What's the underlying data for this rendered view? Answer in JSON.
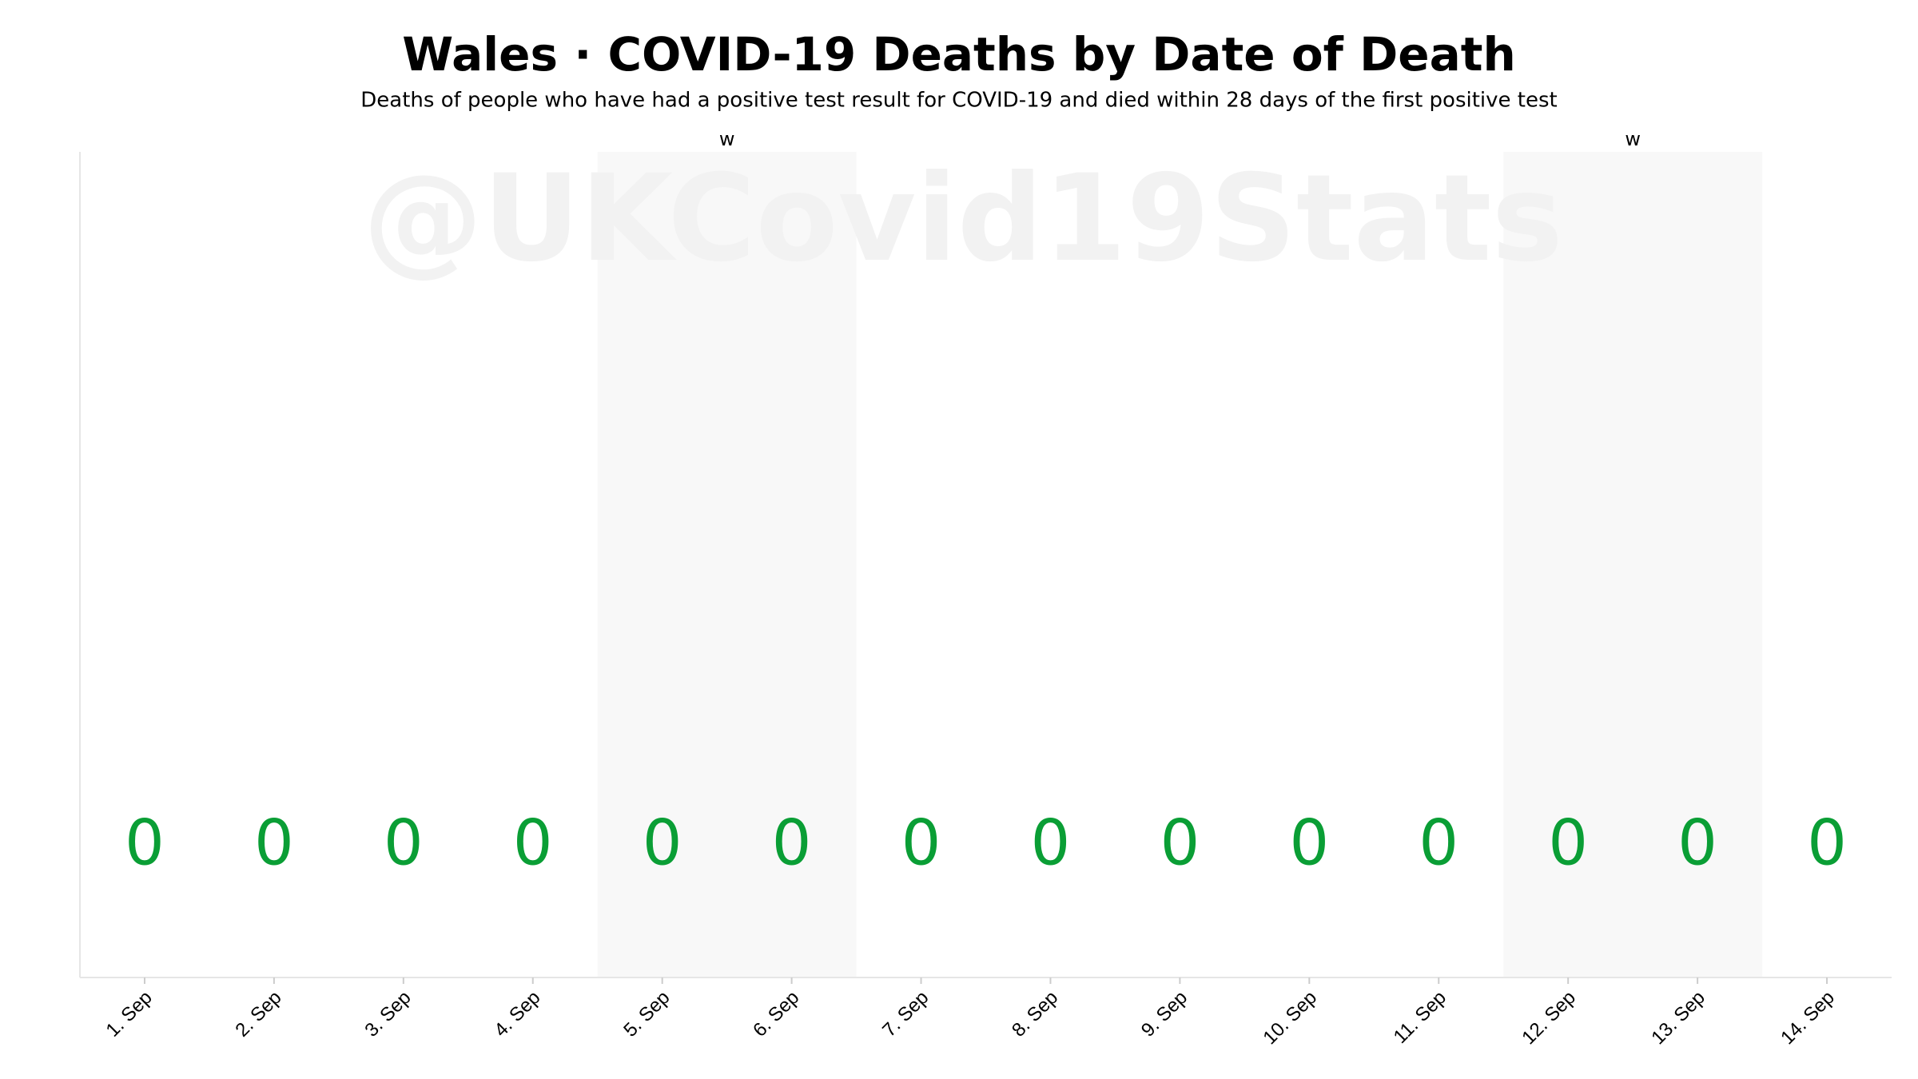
{
  "chart_data": {
    "type": "bar",
    "title": "Wales · COVID-19 Deaths by Date of Death",
    "subtitle": "Deaths of people who have had a positive test result for COVID-19 and died within 28 days of the first positive test",
    "watermark": "@UKCovid19Stats",
    "categories": [
      "1. Sep",
      "2. Sep",
      "3. Sep",
      "4. Sep",
      "5. Sep",
      "6. Sep",
      "7. Sep",
      "8. Sep",
      "9. Sep",
      "10. Sep",
      "11. Sep",
      "12. Sep",
      "13. Sep",
      "14. Sep"
    ],
    "values": [
      0,
      0,
      0,
      0,
      0,
      0,
      0,
      0,
      0,
      0,
      0,
      0,
      0,
      0
    ],
    "color": "#0a9e35",
    "weekends": [
      {
        "label": "w",
        "start": "5. Sep",
        "end": "6. Sep"
      },
      {
        "label": "w",
        "start": "12. Sep",
        "end": "13. Sep"
      }
    ]
  }
}
